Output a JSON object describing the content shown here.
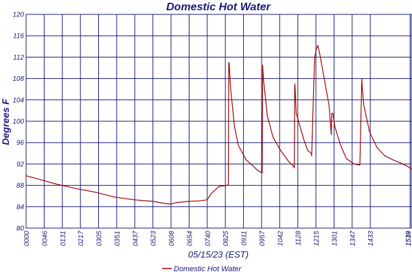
{
  "colors": {
    "grid": "#1a1a7a",
    "series": "#a00000",
    "text": "#1a1a7a",
    "background": "#ffffff"
  },
  "chart_data": {
    "type": "line",
    "title": "Domestic Hot Water",
    "xlabel": "05/15/23 (EST)",
    "ylabel": "Degrees F",
    "ylim": [
      80,
      120
    ],
    "yticks": [
      80,
      84,
      88,
      92,
      96,
      100,
      104,
      108,
      112,
      116,
      120
    ],
    "xlim": [
      0,
      1000
    ],
    "xticks": [
      {
        "pos": 0,
        "label": "0000"
      },
      {
        "pos": 46.9,
        "label": "0046"
      },
      {
        "pos": 93.9,
        "label": "0131"
      },
      {
        "pos": 140.8,
        "label": "0217"
      },
      {
        "pos": 187.8,
        "label": "0305"
      },
      {
        "pos": 234.7,
        "label": "0351"
      },
      {
        "pos": 281.6,
        "label": "0437"
      },
      {
        "pos": 328.6,
        "label": "0523"
      },
      {
        "pos": 375.5,
        "label": "0608"
      },
      {
        "pos": 422.4,
        "label": "0654"
      },
      {
        "pos": 469.4,
        "label": "0740"
      },
      {
        "pos": 516.3,
        "label": "0825"
      },
      {
        "pos": 563.3,
        "label": "0911"
      },
      {
        "pos": 610.2,
        "label": "0957"
      },
      {
        "pos": 657.1,
        "label": "1042"
      },
      {
        "pos": 704.1,
        "label": "1128"
      },
      {
        "pos": 751.0,
        "label": "1215"
      },
      {
        "pos": 798.0,
        "label": "1301"
      },
      {
        "pos": 844.9,
        "label": "1347"
      },
      {
        "pos": 891.8,
        "label": "1433"
      },
      {
        "pos": 995,
        "label": "1519"
      },
      {
        "pos": 1000,
        "label": "1538"
      }
    ],
    "grid": true,
    "legend_position": "bottom-center",
    "series": [
      {
        "name": "Domestic Hot Water",
        "x": [
          0,
          30,
          80,
          130,
          180,
          230,
          280,
          330,
          360,
          375,
          390,
          420,
          450,
          469,
          480,
          500,
          520,
          524,
          525,
          526,
          530,
          540,
          550,
          570,
          590,
          600,
          612,
          613,
          615,
          625,
          640,
          660,
          680,
          690,
          695,
          696,
          697,
          700,
          710,
          720,
          730,
          739,
          740,
          745,
          748,
          752,
          756,
          760,
          770,
          785,
          791,
          792,
          795,
          800,
          815,
          830,
          850,
          865,
          870,
          871,
          875,
          890,
          910,
          930,
          950,
          970,
          990,
          1000
        ],
        "y": [
          89.8,
          89.2,
          88.2,
          87.4,
          86.7,
          85.8,
          85.3,
          85.0,
          84.6,
          84.5,
          84.8,
          85.0,
          85.1,
          85.3,
          86.5,
          87.8,
          88.0,
          88.1,
          111.0,
          111.0,
          106.0,
          99.0,
          95.5,
          92.8,
          91.5,
          90.8,
          90.3,
          110.5,
          108.0,
          101.0,
          97.0,
          94.5,
          92.5,
          91.8,
          91.3,
          107.0,
          106.5,
          101.5,
          99.0,
          96.5,
          94.5,
          94.0,
          93.5,
          106.0,
          112.0,
          113.5,
          114.2,
          113.0,
          109.0,
          103.0,
          97.5,
          101.5,
          101.5,
          99.0,
          95.5,
          93.0,
          92.0,
          91.8,
          108.0,
          106.5,
          103.0,
          98.0,
          95.0,
          93.5,
          92.8,
          92.2,
          91.5,
          91.0
        ]
      }
    ]
  }
}
